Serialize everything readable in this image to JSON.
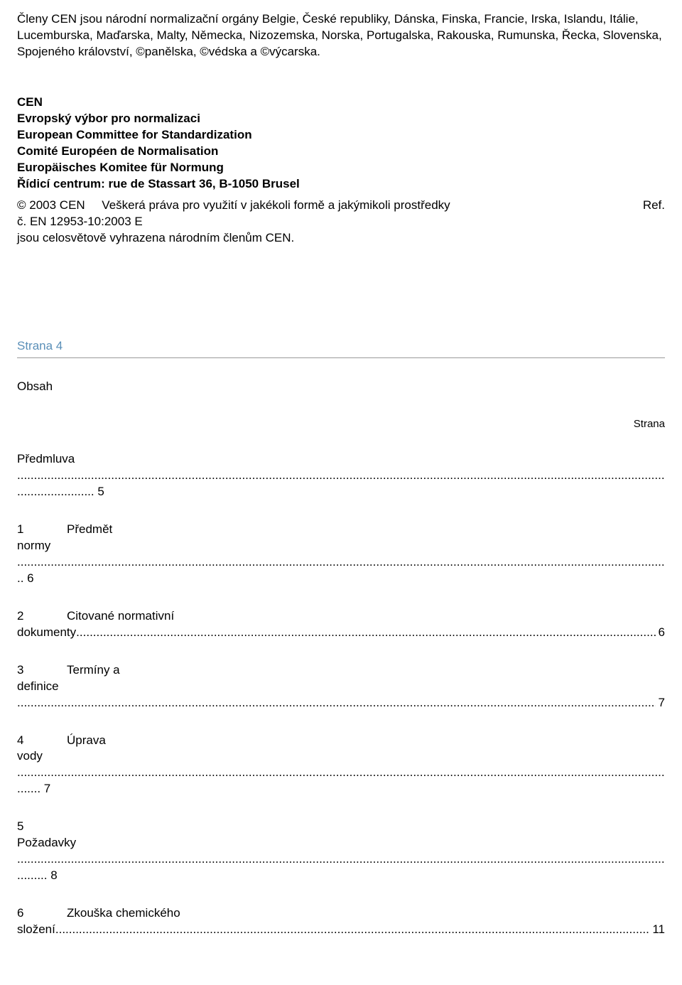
{
  "intro": "Členy CEN jsou národní normalizační orgány Belgie, České republiky, Dánska, Finska, Francie, Irska, Islandu, Itálie, Lucemburska, Maďarska, Malty, Německa, Nizozemska, Norska, Portugalska, Rakouska, Rumunska, Řecka, Slovenska, Spojeného království, ©panělska, ©védska a ©výcarska.",
  "cen": {
    "l1": "CEN",
    "l2": "Evropský výbor pro normalizaci",
    "l3": "European Committee for Standardization",
    "l4": "Comité Européen de Normalisation",
    "l5": "Europäisches Komitee für Normung",
    "l6": "Řídicí centrum: rue de Stassart 36, B-1050 Brusel"
  },
  "copyright": {
    "left": "© 2003 CEN     Veškerá práva pro využití v jakékoli formě a jakýmikoli prostředky",
    "right": "Ref.",
    "l2": "č. EN 12953-10:2003 E",
    "l3": "jsou celosvětově vyhrazena národním členům CEN."
  },
  "strana4": "Strana 4",
  "obsah": "Obsah",
  "strana_label": "Strana",
  "toc": {
    "predmluva": {
      "label": "Předmluva",
      "second": "....................... 5"
    },
    "i1": {
      "num": "1",
      "label": "Předmět",
      "second": "normy",
      "third": ".. 6"
    },
    "i2": {
      "num": "2",
      "label": "Citované normativní",
      "second_lead": "dokumenty",
      "page": " 6"
    },
    "i3": {
      "num": "3",
      "label": "Termíny a",
      "second": "definice",
      "page": " 7"
    },
    "i4": {
      "num": "4",
      "label": "Úprava",
      "second": "vody",
      "third": "....... 7"
    },
    "i5": {
      "num": "5",
      "second": "Požadavky",
      "third": "......... 8"
    },
    "i6": {
      "num": "6",
      "label": "Zkouška chemického",
      "second_lead": "složení",
      "page": " 11"
    }
  },
  "dots_long": "...................................................................................................................................................................................................................................................................................................................................................................................................................................................",
  "colors": {
    "text": "#000000",
    "accent": "#5a8fb8",
    "hr": "#999999",
    "bg": "#ffffff"
  }
}
